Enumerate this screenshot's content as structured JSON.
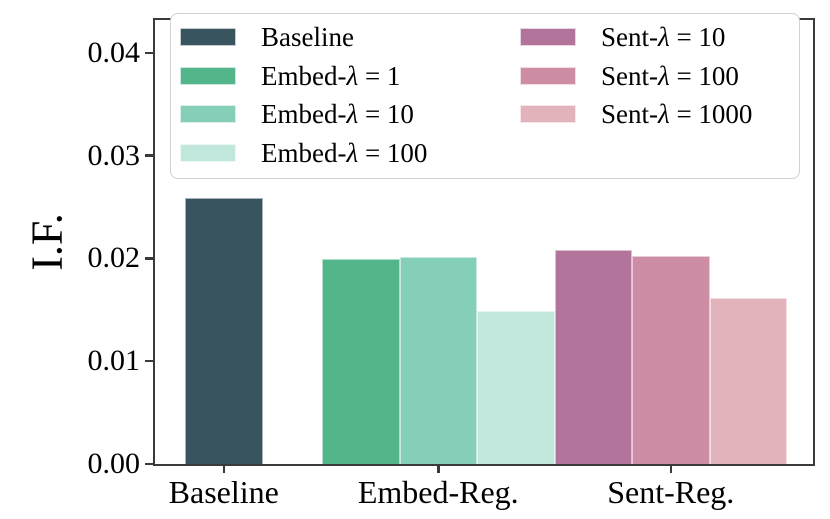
{
  "chart_data": {
    "type": "bar",
    "title": "",
    "xlabel": "",
    "ylabel": "I.F.",
    "categories": [
      "Baseline",
      "Embed-Reg.",
      "Sent-Reg."
    ],
    "yticks": [
      {
        "value": 0.0,
        "label": "0.00"
      },
      {
        "value": 0.01,
        "label": "0.01"
      },
      {
        "value": 0.02,
        "label": "0.02"
      },
      {
        "value": 0.03,
        "label": "0.03"
      },
      {
        "value": 0.04,
        "label": "0.04"
      }
    ],
    "ylim": [
      0,
      0.0432
    ],
    "grid": false,
    "legend_position": "upper center",
    "legend_columns": 2,
    "series": [
      {
        "name": "Baseline",
        "group": "Baseline",
        "value": 0.0259,
        "color": "#38545f"
      },
      {
        "name": "Embed-λ = 1",
        "group": "Embed-Reg.",
        "value": 0.0199,
        "color": "#52b68a"
      },
      {
        "name": "Embed-λ = 10",
        "group": "Embed-Reg.",
        "value": 0.0201,
        "color": "#85ceb8"
      },
      {
        "name": "Embed-λ = 100",
        "group": "Embed-Reg.",
        "value": 0.0149,
        "color": "#c2e7dd"
      },
      {
        "name": "Sent-λ = 10",
        "group": "Sent-Reg.",
        "value": 0.0208,
        "color": "#b3749b"
      },
      {
        "name": "Sent-λ = 100",
        "group": "Sent-Reg.",
        "value": 0.0202,
        "color": "#cd8ea5"
      },
      {
        "name": "Sent-λ = 1000",
        "group": "Sent-Reg.",
        "value": 0.0162,
        "color": "#e2b3ba"
      }
    ],
    "axis_color": "#3a3a3a",
    "legend_border_color": "#d2d2d2"
  }
}
